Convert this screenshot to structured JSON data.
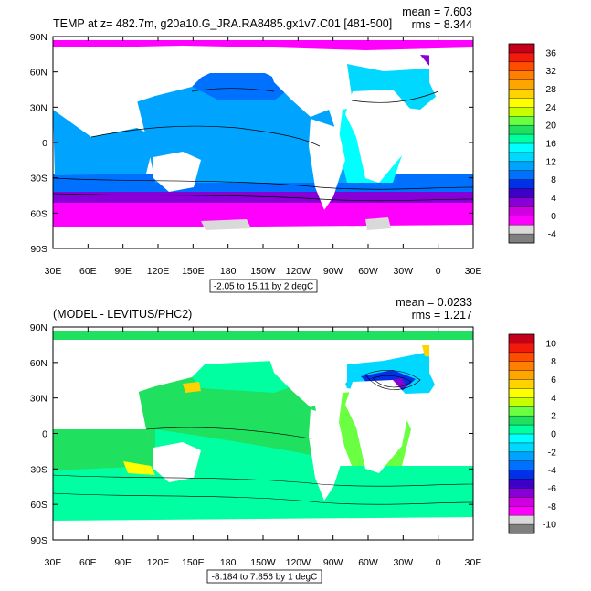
{
  "chart_data": [
    {
      "type": "heatmap",
      "title": "TEMP at z= 482.7m, g20a10.G_JRA.RA8485.gx1v7.C01 [481-500]",
      "stats": {
        "mean": "mean = 7.603",
        "rms": "rms = 8.344"
      },
      "x_ticks": [
        "30E",
        "60E",
        "90E",
        "120E",
        "150E",
        "180",
        "150W",
        "120W",
        "90W",
        "60W",
        "30W",
        "0",
        "30E"
      ],
      "y_ticks": [
        "90N",
        "60N",
        "30N",
        "0",
        "30S",
        "60S",
        "90S"
      ],
      "contour_label": "-2.05 to 15.11 by 2 degC",
      "colorbar": {
        "labels": [
          "36",
          "32",
          "28",
          "24",
          "20",
          "16",
          "12",
          "8",
          "4",
          "0",
          "-4"
        ],
        "colors": [
          "#c4001a",
          "#f21a0a",
          "#ff4d00",
          "#ff7f00",
          "#ffa500",
          "#ffd300",
          "#ffff00",
          "#c8ff00",
          "#6aff40",
          "#20e060",
          "#00ffa0",
          "#00ffff",
          "#00d8ff",
          "#00a4ff",
          "#0070ff",
          "#0030e8",
          "#3c00c8",
          "#8800d8",
          "#d000e0",
          "#ff00ff",
          "#d9d9d9",
          "#7f7f7f"
        ]
      }
    },
    {
      "type": "heatmap",
      "title": "(MODEL - LEVITUS/PHC2)",
      "stats": {
        "mean": "mean = 0.0233",
        "rms": "rms = 1.217"
      },
      "x_ticks": [
        "30E",
        "60E",
        "90E",
        "120E",
        "150E",
        "180",
        "150W",
        "120W",
        "90W",
        "60W",
        "30W",
        "0",
        "30E"
      ],
      "y_ticks": [
        "90N",
        "60N",
        "30N",
        "0",
        "30S",
        "60S",
        "90S"
      ],
      "contour_label": "-8.184 to 7.856 by 1 degC",
      "colorbar": {
        "labels": [
          "10",
          "8",
          "6",
          "4",
          "2",
          "0",
          "-2",
          "-4",
          "-6",
          "-8",
          "-10"
        ],
        "colors": [
          "#c4001a",
          "#f21a0a",
          "#ff4d00",
          "#ff7f00",
          "#ffa500",
          "#ffd300",
          "#ffff00",
          "#c8ff00",
          "#6aff40",
          "#20e060",
          "#00ffa0",
          "#00ffff",
          "#00d8ff",
          "#00a4ff",
          "#0070ff",
          "#0030e8",
          "#3c00c8",
          "#8800d8",
          "#d000e0",
          "#ff00ff",
          "#d9d9d9",
          "#7f7f7f"
        ]
      }
    }
  ]
}
